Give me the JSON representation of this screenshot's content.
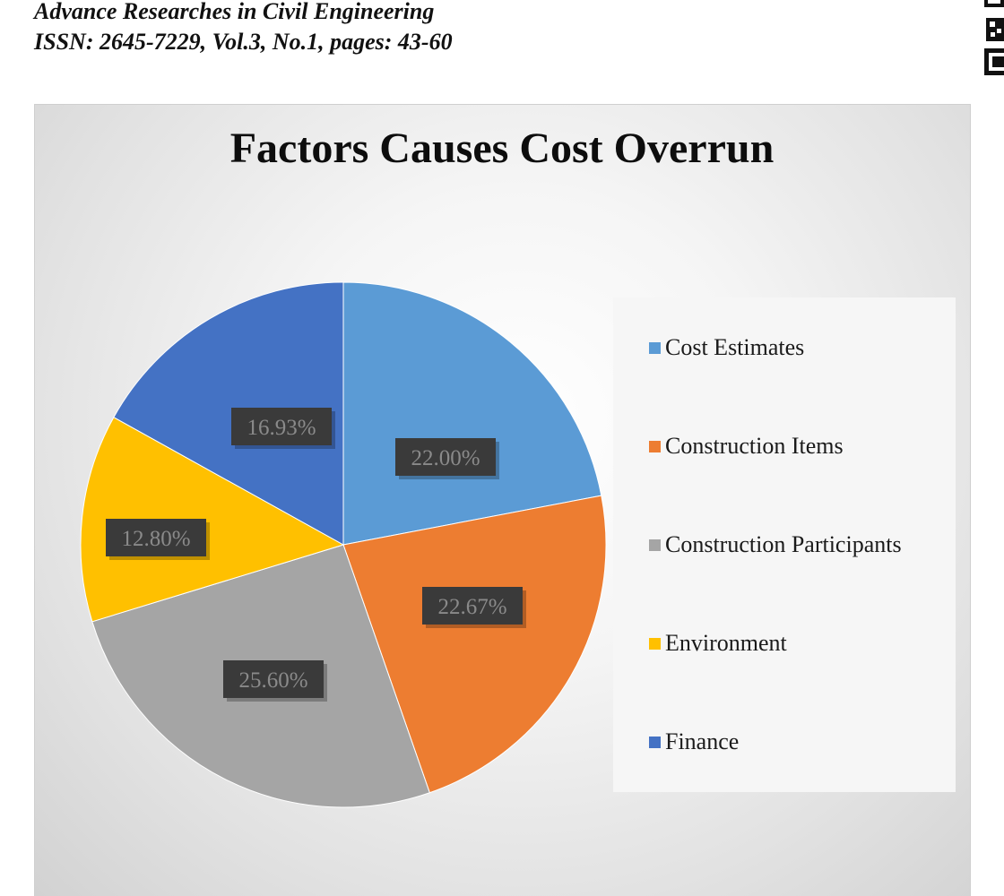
{
  "header": {
    "line1": "Advance Researches in Civil Engineering",
    "line2": "ISSN: 2645-7229, Vol.3, No.1, pages: 43-60"
  },
  "chart_data": {
    "type": "pie",
    "title": "Factors Causes Cost Overrun",
    "categories": [
      "Cost Estimates",
      "Construction Items",
      "Construction Participants",
      "Environment",
      "Finance"
    ],
    "values": [
      22.0,
      22.67,
      25.6,
      12.8,
      16.93
    ],
    "labels": [
      "22.00%",
      "22.67%",
      "25.60%",
      "12.80%",
      "16.93%"
    ],
    "colors": [
      "#5b9bd5",
      "#ed7d31",
      "#a5a5a5",
      "#ffc000",
      "#4472c4"
    ],
    "legend_position": "right"
  }
}
